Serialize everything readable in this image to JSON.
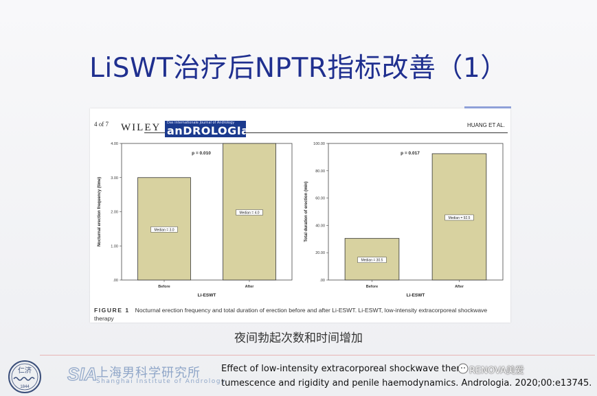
{
  "slide": {
    "title": "LiSWT治疗后NPTR指标改善（1）",
    "subtitle": "夜间勃起次数和时间增加"
  },
  "paper": {
    "page": "4 of 7",
    "publisher": "WILEY",
    "journal": "anDROLOGIa",
    "journal_tagline": "Das internationale Journal of Andrology",
    "author": "HUANG ET AL.",
    "caption_label": "FIGURE 1",
    "caption_text": "Nocturnal erection frequency and total duration of erection before and after Li-ESWT. Li-ESWT, low-intensity extracorporeal shockwave therapy"
  },
  "chart_data": [
    {
      "type": "bar",
      "categories": [
        "Before",
        "After"
      ],
      "values": [
        3.0,
        4.0
      ],
      "bar_labels": [
        "Median = 3.0",
        "Median = 4.0"
      ],
      "ylabel": "Nocturnal erection frequency (time)",
      "xlabel": "Li-ESWT",
      "ylim": [
        0,
        4
      ],
      "yticks": [
        ".00",
        "1.00",
        "2.00",
        "3.00",
        "4.00"
      ],
      "annotation": "p = 0.010",
      "bar_color": "#d8d2a0"
    },
    {
      "type": "bar",
      "categories": [
        "Before",
        "After"
      ],
      "values": [
        30.5,
        92.5
      ],
      "bar_labels": [
        "Median = 30.5",
        "Median = 92.5"
      ],
      "ylabel": "Total duration of erection (min)",
      "xlabel": "Li-ESWT",
      "ylim": [
        0,
        100
      ],
      "yticks": [
        ".00",
        "20.00",
        "40.00",
        "60.00",
        "80.00",
        "100.00"
      ],
      "annotation": "p = 0.017",
      "bar_color": "#d8d2a0"
    }
  ],
  "footer": {
    "institute_cn": "上海男科学研究所",
    "institute_en": "Shanghai Institute of Andrology",
    "seal_text": "仁济",
    "seal_year": "1844",
    "reference_line1": "Effect of low-intensity extracorporeal  shockwave thera",
    "reference_line2": "tumescence and rigidity and penile haemodynamics. Andrologia. 2020;00:e13745.",
    "watermark": "RENOVA美爱"
  }
}
